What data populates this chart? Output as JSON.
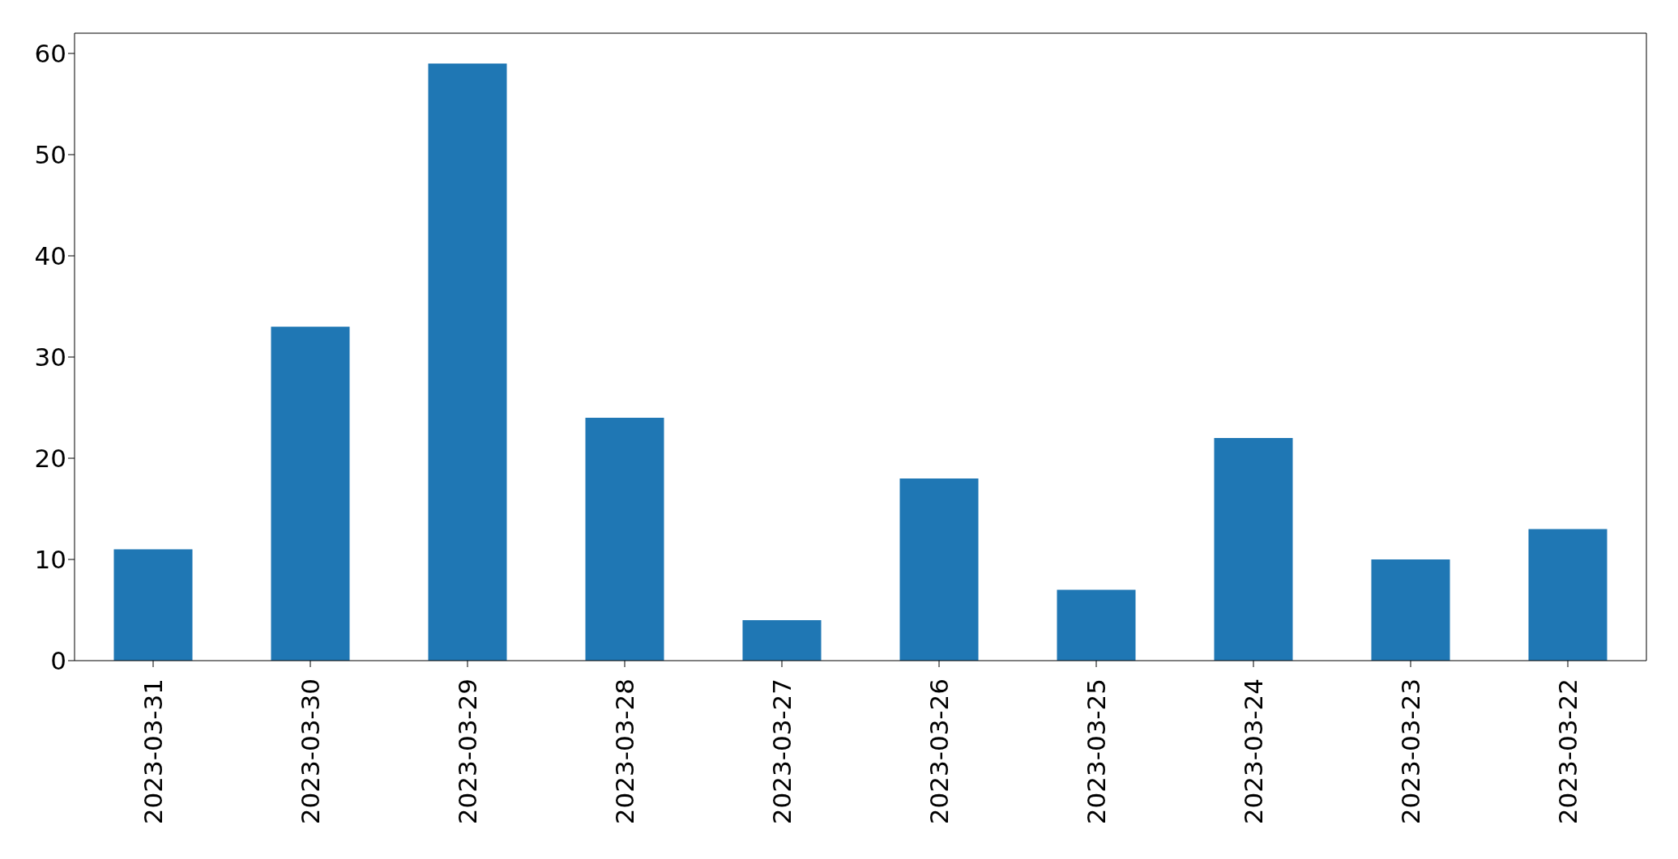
{
  "chart_data": {
    "type": "bar",
    "categories": [
      "2023-03-31",
      "2023-03-30",
      "2023-03-29",
      "2023-03-28",
      "2023-03-27",
      "2023-03-26",
      "2023-03-25",
      "2023-03-24",
      "2023-03-23",
      "2023-03-22"
    ],
    "values": [
      11,
      33,
      59,
      24,
      4,
      18,
      7,
      22,
      10,
      13
    ],
    "color": "#1f77b4",
    "ylim": [
      0,
      62
    ],
    "yticks": [
      0,
      10,
      20,
      30,
      40,
      50,
      60
    ],
    "grid": false
  }
}
